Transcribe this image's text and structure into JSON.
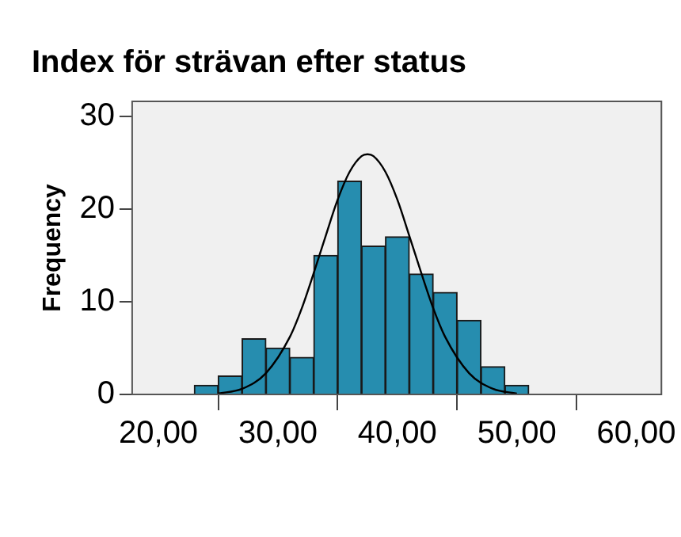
{
  "chart_data": {
    "type": "histogram",
    "title": "Index för strävan efter status",
    "ylabel": "Frequency",
    "series": [
      {
        "bins": [
          23,
          25,
          27,
          29,
          31,
          33,
          35,
          37,
          39,
          41,
          43,
          45,
          47,
          49,
          51
        ],
        "values": [
          1,
          2,
          6,
          5,
          4,
          15,
          23,
          16,
          17,
          13,
          11,
          8,
          3,
          1
        ],
        "color": "#268daf"
      },
      {
        "type": "line",
        "color": "#000000",
        "x": [
          25,
          27,
          29,
          31,
          32,
          33,
          34,
          35,
          36,
          37,
          37.5,
          38,
          39,
          40,
          41,
          42,
          43,
          44,
          46,
          48,
          50
        ],
        "values": [
          0.1,
          0.6,
          2.3,
          6.2,
          9.3,
          13.1,
          17.1,
          21,
          24,
          25.7,
          25.9,
          25.7,
          24,
          21,
          17.1,
          13.1,
          9.3,
          6.2,
          2.3,
          0.6,
          0.1
        ]
      }
    ],
    "xlim": [
      17.8,
      62.1
    ],
    "xticks": [
      {
        "value": 20,
        "label": "20,00"
      },
      {
        "value": 30,
        "label": "30,00"
      },
      {
        "value": 40,
        "label": "40,00"
      },
      {
        "value": 50,
        "label": "50,00"
      },
      {
        "value": 60,
        "label": "60,00"
      }
    ],
    "ylim": [
      0,
      31.6
    ],
    "yticks": [
      0,
      10,
      20,
      30
    ]
  }
}
